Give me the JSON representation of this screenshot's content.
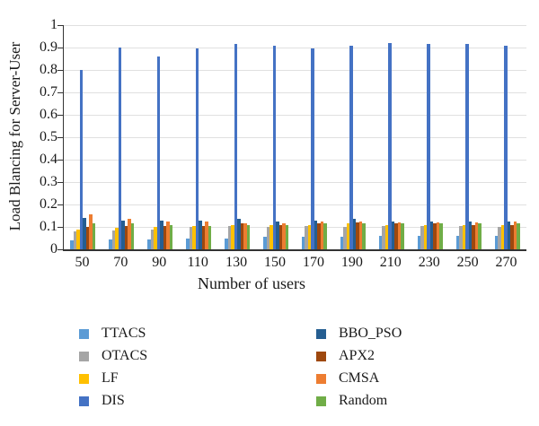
{
  "chart_data": {
    "type": "bar",
    "title": "",
    "xlabel": "Number of users",
    "ylabel": "Load Blancing for Server-User",
    "categories": [
      "50",
      "70",
      "90",
      "110",
      "130",
      "150",
      "170",
      "190",
      "210",
      "230",
      "250",
      "270"
    ],
    "y_ticks": [
      "0",
      "0.1",
      "0.2",
      "0.3",
      "0.4",
      "0.5",
      "0.6",
      "0.7",
      "0.8",
      "0.9",
      "1"
    ],
    "ylim": [
      0,
      1
    ],
    "grid": "horizontal",
    "legend_position": "bottom, two columns",
    "series": [
      {
        "name": "TTACS",
        "color": "#5B9BD5",
        "values": [
          0.04,
          0.045,
          0.045,
          0.05,
          0.05,
          0.055,
          0.055,
          0.055,
          0.06,
          0.06,
          0.06,
          0.06
        ]
      },
      {
        "name": "OTACS",
        "color": "#A5A5A5",
        "values": [
          0.08,
          0.085,
          0.09,
          0.1,
          0.105,
          0.1,
          0.105,
          0.1,
          0.105,
          0.105,
          0.105,
          0.1
        ]
      },
      {
        "name": "LF",
        "color": "#FFC000",
        "values": [
          0.09,
          0.095,
          0.1,
          0.105,
          0.11,
          0.11,
          0.11,
          0.115,
          0.11,
          0.11,
          0.11,
          0.11
        ]
      },
      {
        "name": "DIS",
        "color": "#4472C4",
        "values": [
          0.8,
          0.9,
          0.86,
          0.895,
          0.915,
          0.91,
          0.895,
          0.91,
          0.92,
          0.915,
          0.915,
          0.91
        ]
      },
      {
        "name": "BBO_PSO",
        "color": "#255E91",
        "values": [
          0.14,
          0.13,
          0.13,
          0.13,
          0.135,
          0.125,
          0.13,
          0.135,
          0.125,
          0.125,
          0.125,
          0.125
        ]
      },
      {
        "name": "APX2",
        "color": "#9E480E",
        "values": [
          0.1,
          0.105,
          0.105,
          0.105,
          0.115,
          0.11,
          0.115,
          0.12,
          0.115,
          0.115,
          0.11,
          0.11
        ]
      },
      {
        "name": "CMSA",
        "color": "#ED7D31",
        "values": [
          0.155,
          0.135,
          0.125,
          0.125,
          0.115,
          0.115,
          0.125,
          0.125,
          0.12,
          0.12,
          0.12,
          0.125
        ]
      },
      {
        "name": "Random",
        "color": "#70AD47",
        "values": [
          0.115,
          0.115,
          0.11,
          0.105,
          0.11,
          0.11,
          0.115,
          0.115,
          0.115,
          0.115,
          0.115,
          0.115
        ]
      }
    ],
    "legend_columns": [
      [
        "TTACS",
        "OTACS",
        "LF",
        "DIS"
      ],
      [
        "BBO_PSO",
        "APX2",
        "CMSA",
        "Random"
      ]
    ]
  },
  "colors": {
    "axis": "#333333",
    "gridline": "#E0E0E0",
    "background": "#FFFFFF"
  }
}
